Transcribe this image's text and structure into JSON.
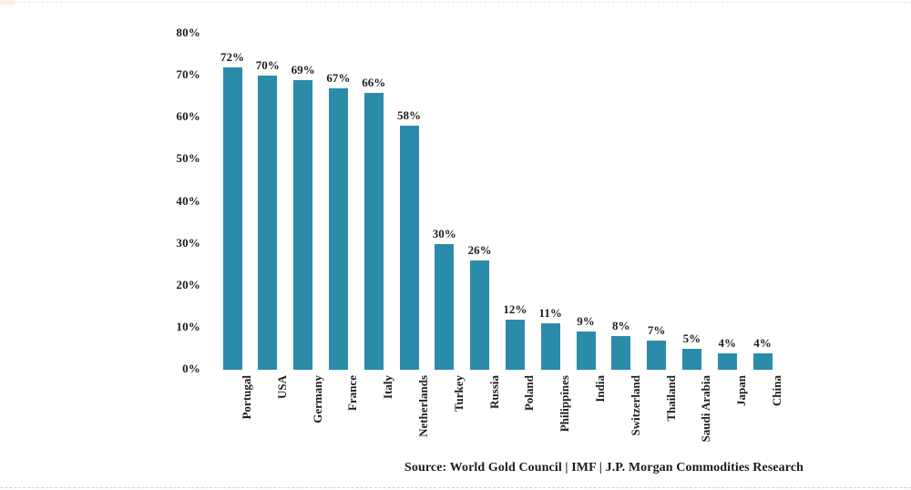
{
  "chart_data": {
    "type": "bar",
    "categories": [
      "Portugal",
      "USA",
      "Germany",
      "France",
      "Italy",
      "Netherlands",
      "Turkey",
      "Russia",
      "Poland",
      "Philippines",
      "India",
      "Switzerland",
      "Thailand",
      "Saudi Arabia",
      "Japan",
      "China"
    ],
    "values": [
      72,
      70,
      69,
      67,
      66,
      58,
      30,
      26,
      12,
      11,
      9,
      8,
      7,
      5,
      4,
      4
    ],
    "value_labels": [
      "72%",
      "70%",
      "69%",
      "67%",
      "66%",
      "58%",
      "30%",
      "26%",
      "12%",
      "11%",
      "9%",
      "8%",
      "7%",
      "5%",
      "4%",
      "4%"
    ],
    "ytick_labels": [
      "0%",
      "10%",
      "20%",
      "30%",
      "40%",
      "50%",
      "60%",
      "70%",
      "80%"
    ],
    "ylim": [
      0,
      80
    ],
    "ytick_step": 10,
    "title": "",
    "xlabel": "",
    "ylabel": "",
    "grid": false,
    "legend": false,
    "bar_color": "#2b8ca9",
    "text_color": "#1d1d1d",
    "source": "Source: World Gold Council | IMF | J.P. Morgan Commodities Research"
  }
}
